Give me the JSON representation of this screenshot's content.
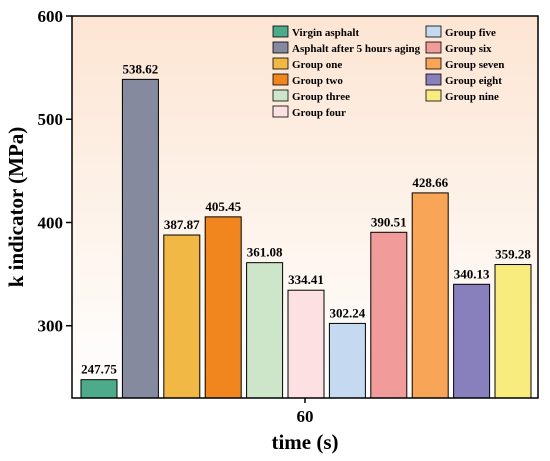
{
  "chart_data": {
    "type": "bar",
    "title": "",
    "xlabel": "time  (s)",
    "ylabel": "k indicator (MPa)",
    "x_categories": [
      "60"
    ],
    "ylim": [
      230,
      600
    ],
    "yticks": [
      300,
      400,
      500,
      600
    ],
    "grid": false,
    "legend_position": "top-right",
    "series": [
      {
        "name": "Virgin asphalt",
        "value": 247.75,
        "color": "#4dab8c"
      },
      {
        "name": "Asphalt after 5 hours aging",
        "value": 538.62,
        "color": "#858a9e"
      },
      {
        "name": "Group one",
        "value": 387.87,
        "color": "#f2b845"
      },
      {
        "name": "Group two",
        "value": 405.45,
        "color": "#f0861d"
      },
      {
        "name": "Group three",
        "value": 361.08,
        "color": "#cde5c9"
      },
      {
        "name": "Group four",
        "value": 334.41,
        "color": "#fde0e1"
      },
      {
        "name": "Group five",
        "value": 302.24,
        "color": "#c5daf0"
      },
      {
        "name": "Group six",
        "value": 390.51,
        "color": "#f29b9b"
      },
      {
        "name": "Group seven",
        "value": 428.66,
        "color": "#f8a558"
      },
      {
        "name": "Group eight",
        "value": 340.13,
        "color": "#8880bc"
      },
      {
        "name": "Group nine",
        "value": 359.28,
        "color": "#f9ec7e"
      }
    ]
  }
}
